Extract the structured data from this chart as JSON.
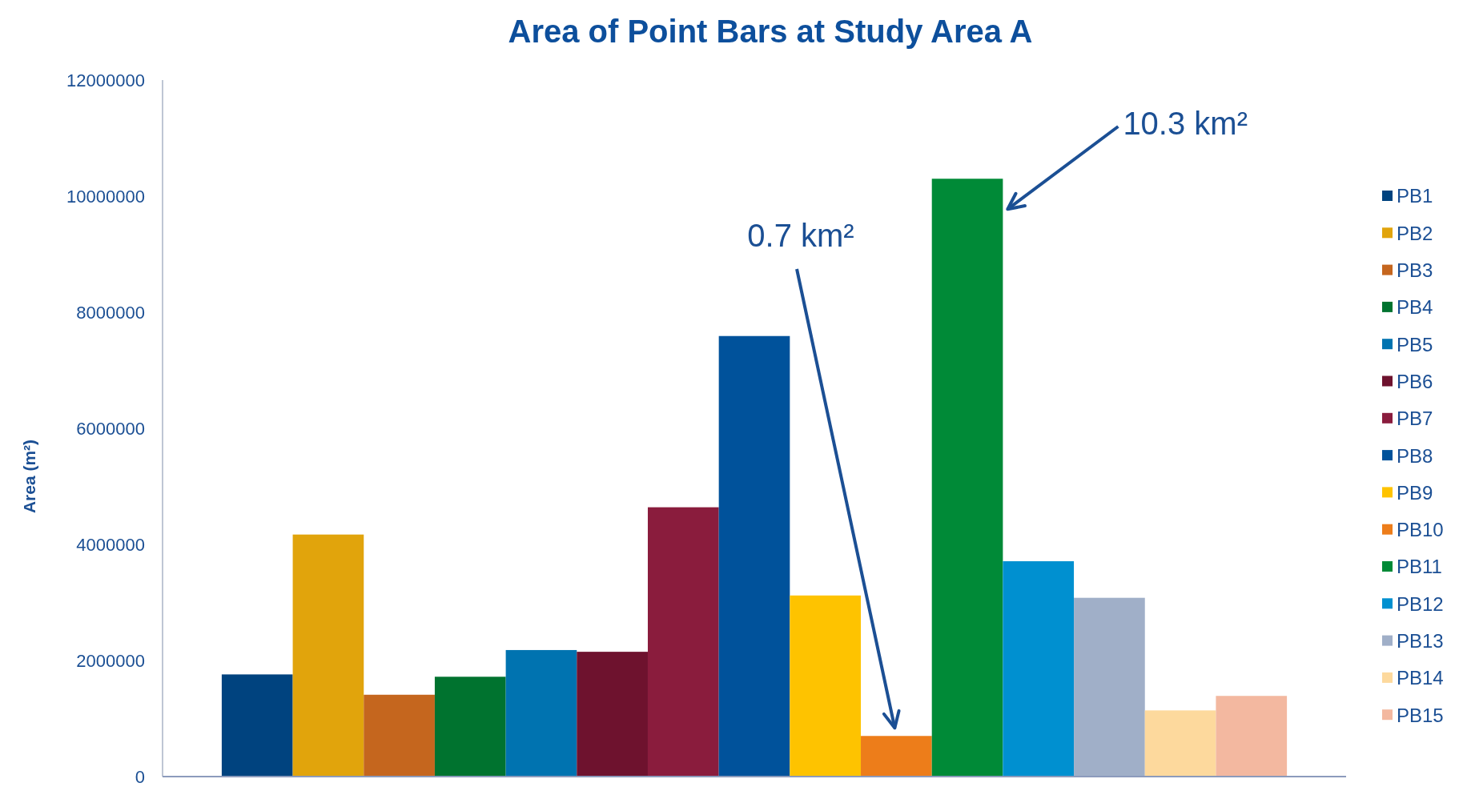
{
  "chart_data": {
    "type": "bar",
    "title": "Area of Point Bars at Study Area A",
    "ylabel": "Area (m²)",
    "categories": [
      null
    ],
    "series": [
      {
        "name": "PB1",
        "color": "#00437f",
        "values": [
          1760000
        ]
      },
      {
        "name": "PB2",
        "color": "#e1a40c",
        "values": [
          4170000
        ]
      },
      {
        "name": "PB3",
        "color": "#c5661e",
        "values": [
          1410000
        ]
      },
      {
        "name": "PB4",
        "color": "#00732f",
        "values": [
          1720000
        ]
      },
      {
        "name": "PB5",
        "color": "#0073b0",
        "values": [
          2180000
        ]
      },
      {
        "name": "PB6",
        "color": "#6e122e",
        "values": [
          2150000
        ]
      },
      {
        "name": "PB7",
        "color": "#8a1c3d",
        "values": [
          4640000
        ]
      },
      {
        "name": "PB8",
        "color": "#00529b",
        "values": [
          7590000
        ]
      },
      {
        "name": "PB9",
        "color": "#fec300",
        "values": [
          3120000
        ]
      },
      {
        "name": "PB10",
        "color": "#ed7d1a",
        "values": [
          700000
        ]
      },
      {
        "name": "PB11",
        "color": "#008a37",
        "values": [
          10300000
        ]
      },
      {
        "name": "PB12",
        "color": "#0090d0",
        "values": [
          3710000
        ]
      },
      {
        "name": "PB13",
        "color": "#a0afc8",
        "values": [
          3080000
        ]
      },
      {
        "name": "PB14",
        "color": "#fdd99d",
        "values": [
          1140000
        ]
      },
      {
        "name": "PB15",
        "color": "#f3b8a0",
        "values": [
          1390000
        ]
      }
    ],
    "ylim": [
      0,
      12000000
    ],
    "yticks": [
      0,
      2000000,
      4000000,
      6000000,
      8000000,
      10000000,
      12000000
    ],
    "grid": false,
    "legend": "right",
    "annotations": [
      "10.3 km²",
      "0.7 km²"
    ]
  }
}
